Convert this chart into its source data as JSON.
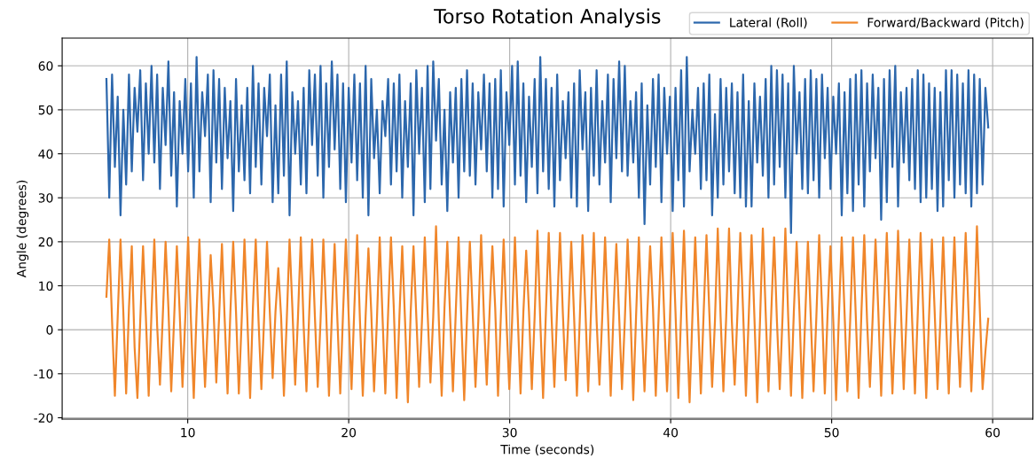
{
  "chart_data": {
    "type": "line",
    "title": "Torso Rotation Analysis",
    "xlabel": "Time (seconds)",
    "ylabel": "Angle (degrees)",
    "x": [
      4.95,
      5.125,
      5.3,
      5.475,
      5.65,
      5.825,
      6.0,
      6.175,
      6.35,
      6.525,
      6.7,
      6.875,
      7.05,
      7.225,
      7.4,
      7.575,
      7.75,
      7.925,
      8.1,
      8.275,
      8.45,
      8.625,
      8.8,
      8.975,
      9.15,
      9.325,
      9.5,
      9.675,
      9.85,
      10.025,
      10.2,
      10.375,
      10.55,
      10.725,
      10.9,
      11.075,
      11.25,
      11.425,
      11.6,
      11.775,
      11.95,
      12.125,
      12.3,
      12.475,
      12.65,
      12.825,
      13.0,
      13.175,
      13.35,
      13.525,
      13.7,
      13.875,
      14.05,
      14.225,
      14.4,
      14.575,
      14.75,
      14.925,
      15.1,
      15.275,
      15.45,
      15.625,
      15.8,
      15.975,
      16.15,
      16.325,
      16.5,
      16.675,
      16.85,
      17.025,
      17.2,
      17.375,
      17.55,
      17.725,
      17.9,
      18.075,
      18.25,
      18.425,
      18.6,
      18.775,
      18.95,
      19.125,
      19.3,
      19.475,
      19.65,
      19.825,
      20.0,
      20.175,
      20.35,
      20.525,
      20.7,
      20.875,
      21.05,
      21.225,
      21.4,
      21.575,
      21.75,
      21.925,
      22.1,
      22.275,
      22.45,
      22.625,
      22.8,
      22.975,
      23.15,
      23.325,
      23.5,
      23.675,
      23.85,
      24.025,
      24.2,
      24.375,
      24.55,
      24.725,
      24.9,
      25.075,
      25.25,
      25.425,
      25.6,
      25.775,
      25.95,
      26.125,
      26.3,
      26.475,
      26.65,
      26.825,
      27.0,
      27.175,
      27.35,
      27.525,
      27.7,
      27.875,
      28.05,
      28.225,
      28.4,
      28.575,
      28.75,
      28.925,
      29.1,
      29.275,
      29.45,
      29.625,
      29.8,
      29.975,
      30.15,
      30.325,
      30.5,
      30.675,
      30.85,
      31.025,
      31.2,
      31.375,
      31.55,
      31.725,
      31.9,
      32.075,
      32.25,
      32.425,
      32.6,
      32.775,
      32.95,
      33.125,
      33.3,
      33.475,
      33.65,
      33.825,
      34.0,
      34.175,
      34.35,
      34.525,
      34.7,
      34.875,
      35.05,
      35.225,
      35.4,
      35.575,
      35.75,
      35.925,
      36.1,
      36.275,
      36.45,
      36.625,
      36.8,
      36.975,
      37.15,
      37.325,
      37.5,
      37.675,
      37.85,
      38.025,
      38.2,
      38.375,
      38.55,
      38.725,
      38.9,
      39.075,
      39.25,
      39.425,
      39.6,
      39.775,
      39.95,
      40.125,
      40.3,
      40.475,
      40.65,
      40.825,
      41.0,
      41.175,
      41.35,
      41.525,
      41.7,
      41.875,
      42.05,
      42.225,
      42.4,
      42.575,
      42.75,
      42.925,
      43.1,
      43.275,
      43.45,
      43.625,
      43.8,
      43.975,
      44.15,
      44.325,
      44.5,
      44.675,
      44.85,
      45.025,
      45.2,
      45.375,
      45.55,
      45.725,
      45.9,
      46.075,
      46.25,
      46.425,
      46.6,
      46.775,
      46.95,
      47.125,
      47.3,
      47.475,
      47.65,
      47.825,
      48.0,
      48.175,
      48.35,
      48.525,
      48.7,
      48.875,
      49.05,
      49.225,
      49.4,
      49.575,
      49.75,
      49.925,
      50.1,
      50.275,
      50.45,
      50.625,
      50.8,
      50.975,
      51.15,
      51.325,
      51.5,
      51.675,
      51.85,
      52.025,
      52.2,
      52.375,
      52.55,
      52.725,
      52.9,
      53.075,
      53.25,
      53.425,
      53.6,
      53.775,
      53.95,
      54.125,
      54.3,
      54.475,
      54.65,
      54.825,
      55.0,
      55.175,
      55.35,
      55.525,
      55.7,
      55.875,
      56.05,
      56.225,
      56.4,
      56.575,
      56.75,
      56.925,
      57.1,
      57.275,
      57.45,
      57.625,
      57.8,
      57.975,
      58.15,
      58.325,
      58.5,
      58.675,
      58.85,
      59.025,
      59.2,
      59.375,
      59.55,
      59.725
    ],
    "series": [
      {
        "name": "Lateral (Roll)",
        "color": "#2c67ac",
        "values": [
          57,
          30,
          58,
          37,
          53,
          26,
          50,
          33,
          58,
          36,
          55,
          45,
          59,
          34,
          56,
          40,
          60,
          38,
          58,
          32,
          55,
          42,
          61,
          35,
          54,
          28,
          52,
          40,
          57,
          36,
          56,
          30,
          62,
          36,
          54,
          44,
          58,
          29,
          59,
          38,
          57,
          32,
          55,
          39,
          52,
          27,
          57,
          36,
          51,
          34,
          55,
          31,
          60,
          37,
          56,
          33,
          55,
          44,
          58,
          29,
          51,
          31,
          58,
          35,
          61,
          26,
          54,
          40,
          52,
          33,
          55,
          31,
          59,
          42,
          58,
          35,
          60,
          30,
          56,
          37,
          61,
          41,
          58,
          32,
          56,
          29,
          55,
          38,
          58,
          34,
          56,
          30,
          60,
          26,
          57,
          39,
          50,
          31,
          52,
          44,
          57,
          33,
          56,
          36,
          58,
          30,
          52,
          37,
          56,
          26,
          59,
          40,
          55,
          29,
          60,
          32,
          61,
          43,
          57,
          33,
          50,
          27,
          54,
          38,
          55,
          30,
          57,
          36,
          59,
          35,
          56,
          33,
          54,
          41,
          58,
          36,
          56,
          30,
          57,
          32,
          59,
          28,
          54,
          42,
          60,
          33,
          61,
          35,
          56,
          29,
          53,
          37,
          57,
          31,
          62,
          36,
          57,
          32,
          55,
          28,
          58,
          34,
          52,
          39,
          54,
          30,
          56,
          28,
          59,
          41,
          54,
          27,
          55,
          35,
          59,
          33,
          52,
          38,
          58,
          29,
          57,
          39,
          61,
          36,
          60,
          35,
          52,
          38,
          54,
          30,
          56,
          24,
          51,
          33,
          57,
          37,
          58,
          29,
          55,
          40,
          53,
          27,
          55,
          34,
          59,
          28,
          62,
          36,
          50,
          40,
          55,
          32,
          56,
          34,
          58,
          26,
          49,
          30,
          57,
          33,
          55,
          36,
          56,
          31,
          54,
          30,
          58,
          28,
          52,
          28,
          56,
          38,
          53,
          35,
          57,
          30,
          60,
          33,
          59,
          37,
          58,
          30,
          56,
          22,
          60,
          40,
          54,
          32,
          57,
          31,
          59,
          34,
          57,
          30,
          58,
          39,
          55,
          32,
          53,
          40,
          56,
          26,
          54,
          31,
          57,
          27,
          58,
          33,
          59,
          28,
          56,
          36,
          58,
          39,
          55,
          25,
          57,
          29,
          59,
          37,
          60,
          28,
          54,
          38,
          55,
          34,
          57,
          32,
          59,
          29,
          58,
          30,
          56,
          32,
          55,
          27,
          54,
          28,
          59,
          34,
          59,
          30,
          58,
          33,
          56,
          31,
          59,
          28,
          58,
          31,
          57,
          33,
          55,
          46
        ]
      },
      {
        "name": "Forward/Backward (Pitch)",
        "color": "#f0862a",
        "values": [
          7.5,
          20.5,
          2,
          -15,
          3,
          20.5,
          4,
          -14.5,
          5,
          19,
          -4,
          -15.5,
          2,
          19,
          3,
          -15,
          4,
          20.5,
          1,
          -12.5,
          3,
          20,
          5,
          -14,
          2,
          19,
          4,
          -13,
          3,
          21,
          2,
          -15.5,
          4,
          20.5,
          3,
          -13,
          2,
          17,
          5,
          -12,
          3,
          19.5,
          2,
          -14.5,
          4,
          20,
          4,
          -14.5,
          2,
          20.5,
          3,
          -15.5,
          5,
          20.5,
          2,
          -13.5,
          3,
          20,
          4,
          -11,
          4,
          14,
          3,
          -15,
          2,
          20.5,
          5,
          -12.5,
          3,
          21,
          1,
          -14,
          4,
          20.5,
          3,
          -13,
          2,
          20.5,
          4,
          -15,
          3,
          19.5,
          2,
          -14.5,
          4,
          20.5,
          3,
          -13.5,
          5,
          21.5,
          2,
          -15,
          3,
          18.5,
          4,
          -14,
          2,
          21,
          3,
          -14.5,
          4,
          21,
          5,
          -15.5,
          3,
          19,
          2,
          -16.5,
          4,
          19,
          3,
          -13,
          2,
          21,
          4,
          -12,
          3,
          23.5,
          2,
          -15,
          5,
          20,
          3,
          -14,
          4,
          21,
          2,
          -16,
          3,
          20,
          4,
          -13,
          2,
          21.5,
          3,
          -12.5,
          4,
          19,
          5,
          -15,
          3,
          20.5,
          2,
          -13.5,
          2,
          21,
          3,
          -14.5,
          4,
          18,
          4,
          -13.5,
          3,
          22.5,
          2,
          -15.5,
          4,
          22,
          3,
          -13,
          5,
          22,
          4,
          -11.5,
          3,
          20,
          3,
          -15,
          2,
          21.5,
          5,
          -14,
          4,
          22,
          2,
          -12.5,
          3,
          21,
          4,
          -15,
          4,
          19.5,
          3,
          -13.5,
          2,
          20.5,
          4,
          -16,
          3,
          21,
          2,
          -14,
          4,
          19,
          5,
          -15,
          3,
          21,
          3,
          -14,
          2,
          22,
          4,
          -15.5,
          4,
          22.5,
          2,
          -16.5,
          3,
          21,
          3,
          -14.5,
          4,
          21.5,
          4,
          -13,
          2,
          23,
          3,
          -14,
          3,
          23,
          2,
          -12.5,
          4,
          22,
          4,
          -15,
          3,
          21.5,
          3,
          -16.5,
          2,
          23,
          4,
          -14,
          4,
          21,
          2,
          -13.5,
          3,
          23,
          3,
          -15,
          4,
          20,
          4,
          -15.5,
          2,
          20,
          3,
          -14,
          3,
          21.5,
          5,
          -14.5,
          4,
          19,
          2,
          -16,
          3,
          21,
          4,
          -14,
          2,
          21,
          3,
          -15.5,
          4,
          21.5,
          2,
          -13,
          3,
          20.5,
          4,
          -15,
          4,
          22,
          3,
          -14.5,
          2,
          22.5,
          5,
          -13.5,
          3,
          20.5,
          2,
          -14.5,
          4,
          22,
          3,
          -15.5,
          3,
          20.5,
          4,
          -13.5,
          2,
          21,
          3,
          -14.5,
          4,
          21,
          2,
          -13,
          3,
          22,
          4,
          -14,
          2,
          23.5,
          5,
          -13.5,
          -5,
          2.5
        ]
      }
    ],
    "xlim": [
      2.2,
      62.5
    ],
    "ylim": [
      -20.3,
      66.3
    ],
    "xticks": [
      10,
      20,
      30,
      40,
      50,
      60
    ],
    "yticks": [
      -20,
      -10,
      0,
      10,
      20,
      30,
      40,
      50,
      60
    ],
    "grid": true,
    "legend": "top right"
  }
}
